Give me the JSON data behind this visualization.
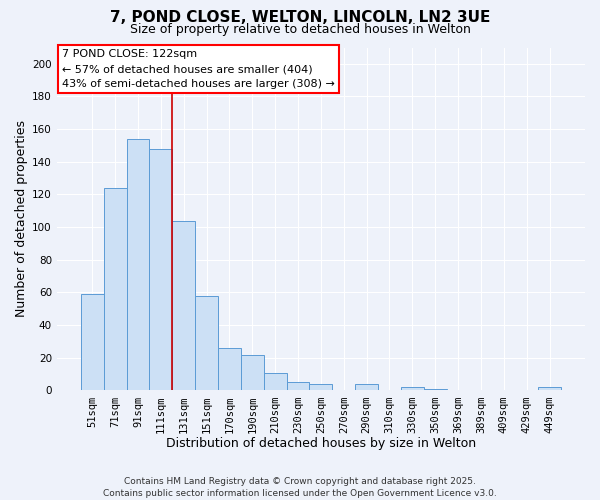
{
  "title": "7, POND CLOSE, WELTON, LINCOLN, LN2 3UE",
  "subtitle": "Size of property relative to detached houses in Welton",
  "xlabel": "Distribution of detached houses by size in Welton",
  "ylabel": "Number of detached properties",
  "bar_labels": [
    "51sqm",
    "71sqm",
    "91sqm",
    "111sqm",
    "131sqm",
    "151sqm",
    "170sqm",
    "190sqm",
    "210sqm",
    "230sqm",
    "250sqm",
    "270sqm",
    "290sqm",
    "310sqm",
    "330sqm",
    "350sqm",
    "369sqm",
    "389sqm",
    "409sqm",
    "429sqm",
    "449sqm"
  ],
  "bar_values": [
    59,
    124,
    154,
    148,
    104,
    58,
    26,
    22,
    11,
    5,
    4,
    0,
    4,
    0,
    2,
    1,
    0,
    0,
    0,
    0,
    2
  ],
  "bar_color": "#cce0f5",
  "bar_edge_color": "#5b9bd5",
  "background_color": "#eef2fa",
  "grid_color": "#ffffff",
  "vline_color": "#cc0000",
  "annotation_line1": "7 POND CLOSE: 122sqm",
  "annotation_line2": "← 57% of detached houses are smaller (404)",
  "annotation_line3": "43% of semi-detached houses are larger (308) →",
  "ylim": [
    0,
    210
  ],
  "yticks": [
    0,
    20,
    40,
    60,
    80,
    100,
    120,
    140,
    160,
    180,
    200
  ],
  "footnote_line1": "Contains HM Land Registry data © Crown copyright and database right 2025.",
  "footnote_line2": "Contains public sector information licensed under the Open Government Licence v3.0.",
  "title_fontsize": 11,
  "subtitle_fontsize": 9,
  "label_fontsize": 9,
  "tick_fontsize": 7.5,
  "annotation_fontsize": 8,
  "footnote_fontsize": 6.5
}
